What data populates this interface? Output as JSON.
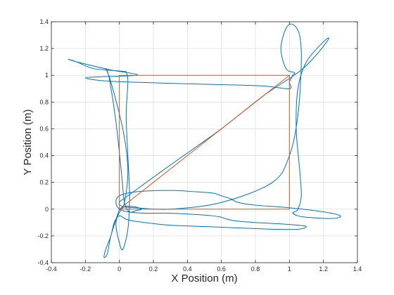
{
  "chart_data": {
    "type": "line",
    "title": "",
    "xlabel": "X Position (m)",
    "ylabel": "Y Position (m)",
    "xlim": [
      -0.4,
      1.4
    ],
    "ylim": [
      -0.4,
      1.4
    ],
    "grid": true,
    "x_ticks": [
      -0.4,
      -0.2,
      0,
      0.2,
      0.4,
      0.6,
      0.8,
      1,
      1.2,
      1.4
    ],
    "x_tick_labels": [
      "-0.4",
      "-0.2",
      "0",
      "0.2",
      "0.4",
      "0.6",
      "0.8",
      "1",
      "1.2",
      "1.4"
    ],
    "y_ticks": [
      -0.4,
      -0.2,
      0,
      0.2,
      0.4,
      0.6,
      0.8,
      1,
      1.2,
      1.4
    ],
    "y_tick_labels": [
      "-0.4",
      "-0.2",
      "0",
      "0.2",
      "0.4",
      "0.6",
      "0.8",
      "1",
      "1.2",
      "1.4"
    ],
    "series": [
      {
        "color": "#0072BD",
        "x": [
          0,
          0.03,
          0.05,
          0.02,
          -0.05,
          -0.08,
          -0.06,
          -0.02,
          0.01,
          0.03,
          0.06,
          0.1,
          0.13,
          0.08,
          0.02,
          -0.02,
          0.0,
          0.02,
          0.05,
          0.06,
          0.05,
          0.04,
          0.05,
          0.04,
          0.02,
          -0.15,
          -0.25,
          -0.3,
          -0.25,
          -0.05,
          0.05,
          0.1,
          -0.1,
          -0.2,
          -0.1,
          0.05,
          0.3,
          0.6,
          0.85,
          1.0,
          1.0,
          1.02,
          1.03,
          0.98,
          0.95,
          0.98,
          1.02,
          1.06,
          1.07,
          1.05,
          1.0,
          0.9,
          0.6,
          0.3,
          0.1,
          0.02,
          0.0,
          0.05,
          0.3,
          0.6,
          0.85,
          1.05,
          1.15,
          1.23,
          1.2,
          1.1,
          1.05,
          1.04,
          1.06,
          1.07,
          1.05,
          1.03,
          1.02,
          1.05,
          1.1,
          1.25,
          1.3,
          1.2,
          1.0,
          0.8,
          0.7,
          0.65,
          0.6,
          0.55,
          0.45,
          0.3,
          0.1,
          0.0,
          -0.02,
          0.0,
          0.05,
          0.15,
          0.3,
          0.45,
          0.55,
          0.6,
          0.62,
          0.65,
          0.7,
          0.8,
          0.95,
          1.05,
          1.1,
          1.05,
          0.9,
          0.7,
          0.5,
          0.3,
          0.15,
          0.05,
          0.0,
          -0.03,
          -0.05,
          -0.08,
          -0.09,
          -0.07,
          -0.05,
          0.0
        ],
        "y": [
          0,
          0.05,
          0.3,
          0.6,
          0.95,
          1.05,
          0.98,
          0.65,
          0.3,
          0.05,
          -0.02,
          -0.01,
          0.0,
          0.02,
          0.01,
          -0.1,
          -0.25,
          -0.3,
          -0.15,
          0.1,
          0.4,
          0.7,
          0.95,
          1.02,
          1.03,
          1.05,
          1.1,
          1.12,
          1.1,
          1.04,
          1.02,
          1.0,
          0.99,
          0.98,
          0.96,
          0.95,
          0.94,
          0.93,
          0.92,
          0.9,
          0.95,
          1.0,
          1.02,
          1.05,
          1.2,
          1.35,
          1.38,
          1.3,
          1.1,
          0.7,
          0.4,
          0.2,
          0.05,
          0.0,
          0.01,
          0.02,
          0.05,
          0.1,
          0.33,
          0.6,
          0.85,
          1.02,
          1.14,
          1.27,
          1.25,
          1.1,
          0.9,
          0.6,
          0.3,
          0.1,
          0.0,
          -0.02,
          -0.03,
          -0.05,
          -0.06,
          -0.07,
          -0.05,
          -0.02,
          0.01,
          0.03,
          0.05,
          0.08,
          0.1,
          0.12,
          0.13,
          0.14,
          0.13,
          0.1,
          0.05,
          0.0,
          -0.02,
          -0.03,
          -0.03,
          -0.04,
          -0.05,
          -0.06,
          -0.07,
          -0.08,
          -0.09,
          -0.1,
          -0.11,
          -0.12,
          -0.13,
          -0.15,
          -0.15,
          -0.14,
          -0.13,
          -0.12,
          -0.1,
          -0.08,
          -0.05,
          -0.1,
          -0.2,
          -0.3,
          -0.36,
          -0.33,
          -0.2,
          0.0
        ]
      },
      {
        "color": "#D95319",
        "x": [
          0,
          1,
          0,
          0,
          1,
          1,
          0
        ],
        "y": [
          0,
          1,
          1,
          0,
          0,
          1,
          1
        ]
      }
    ]
  }
}
